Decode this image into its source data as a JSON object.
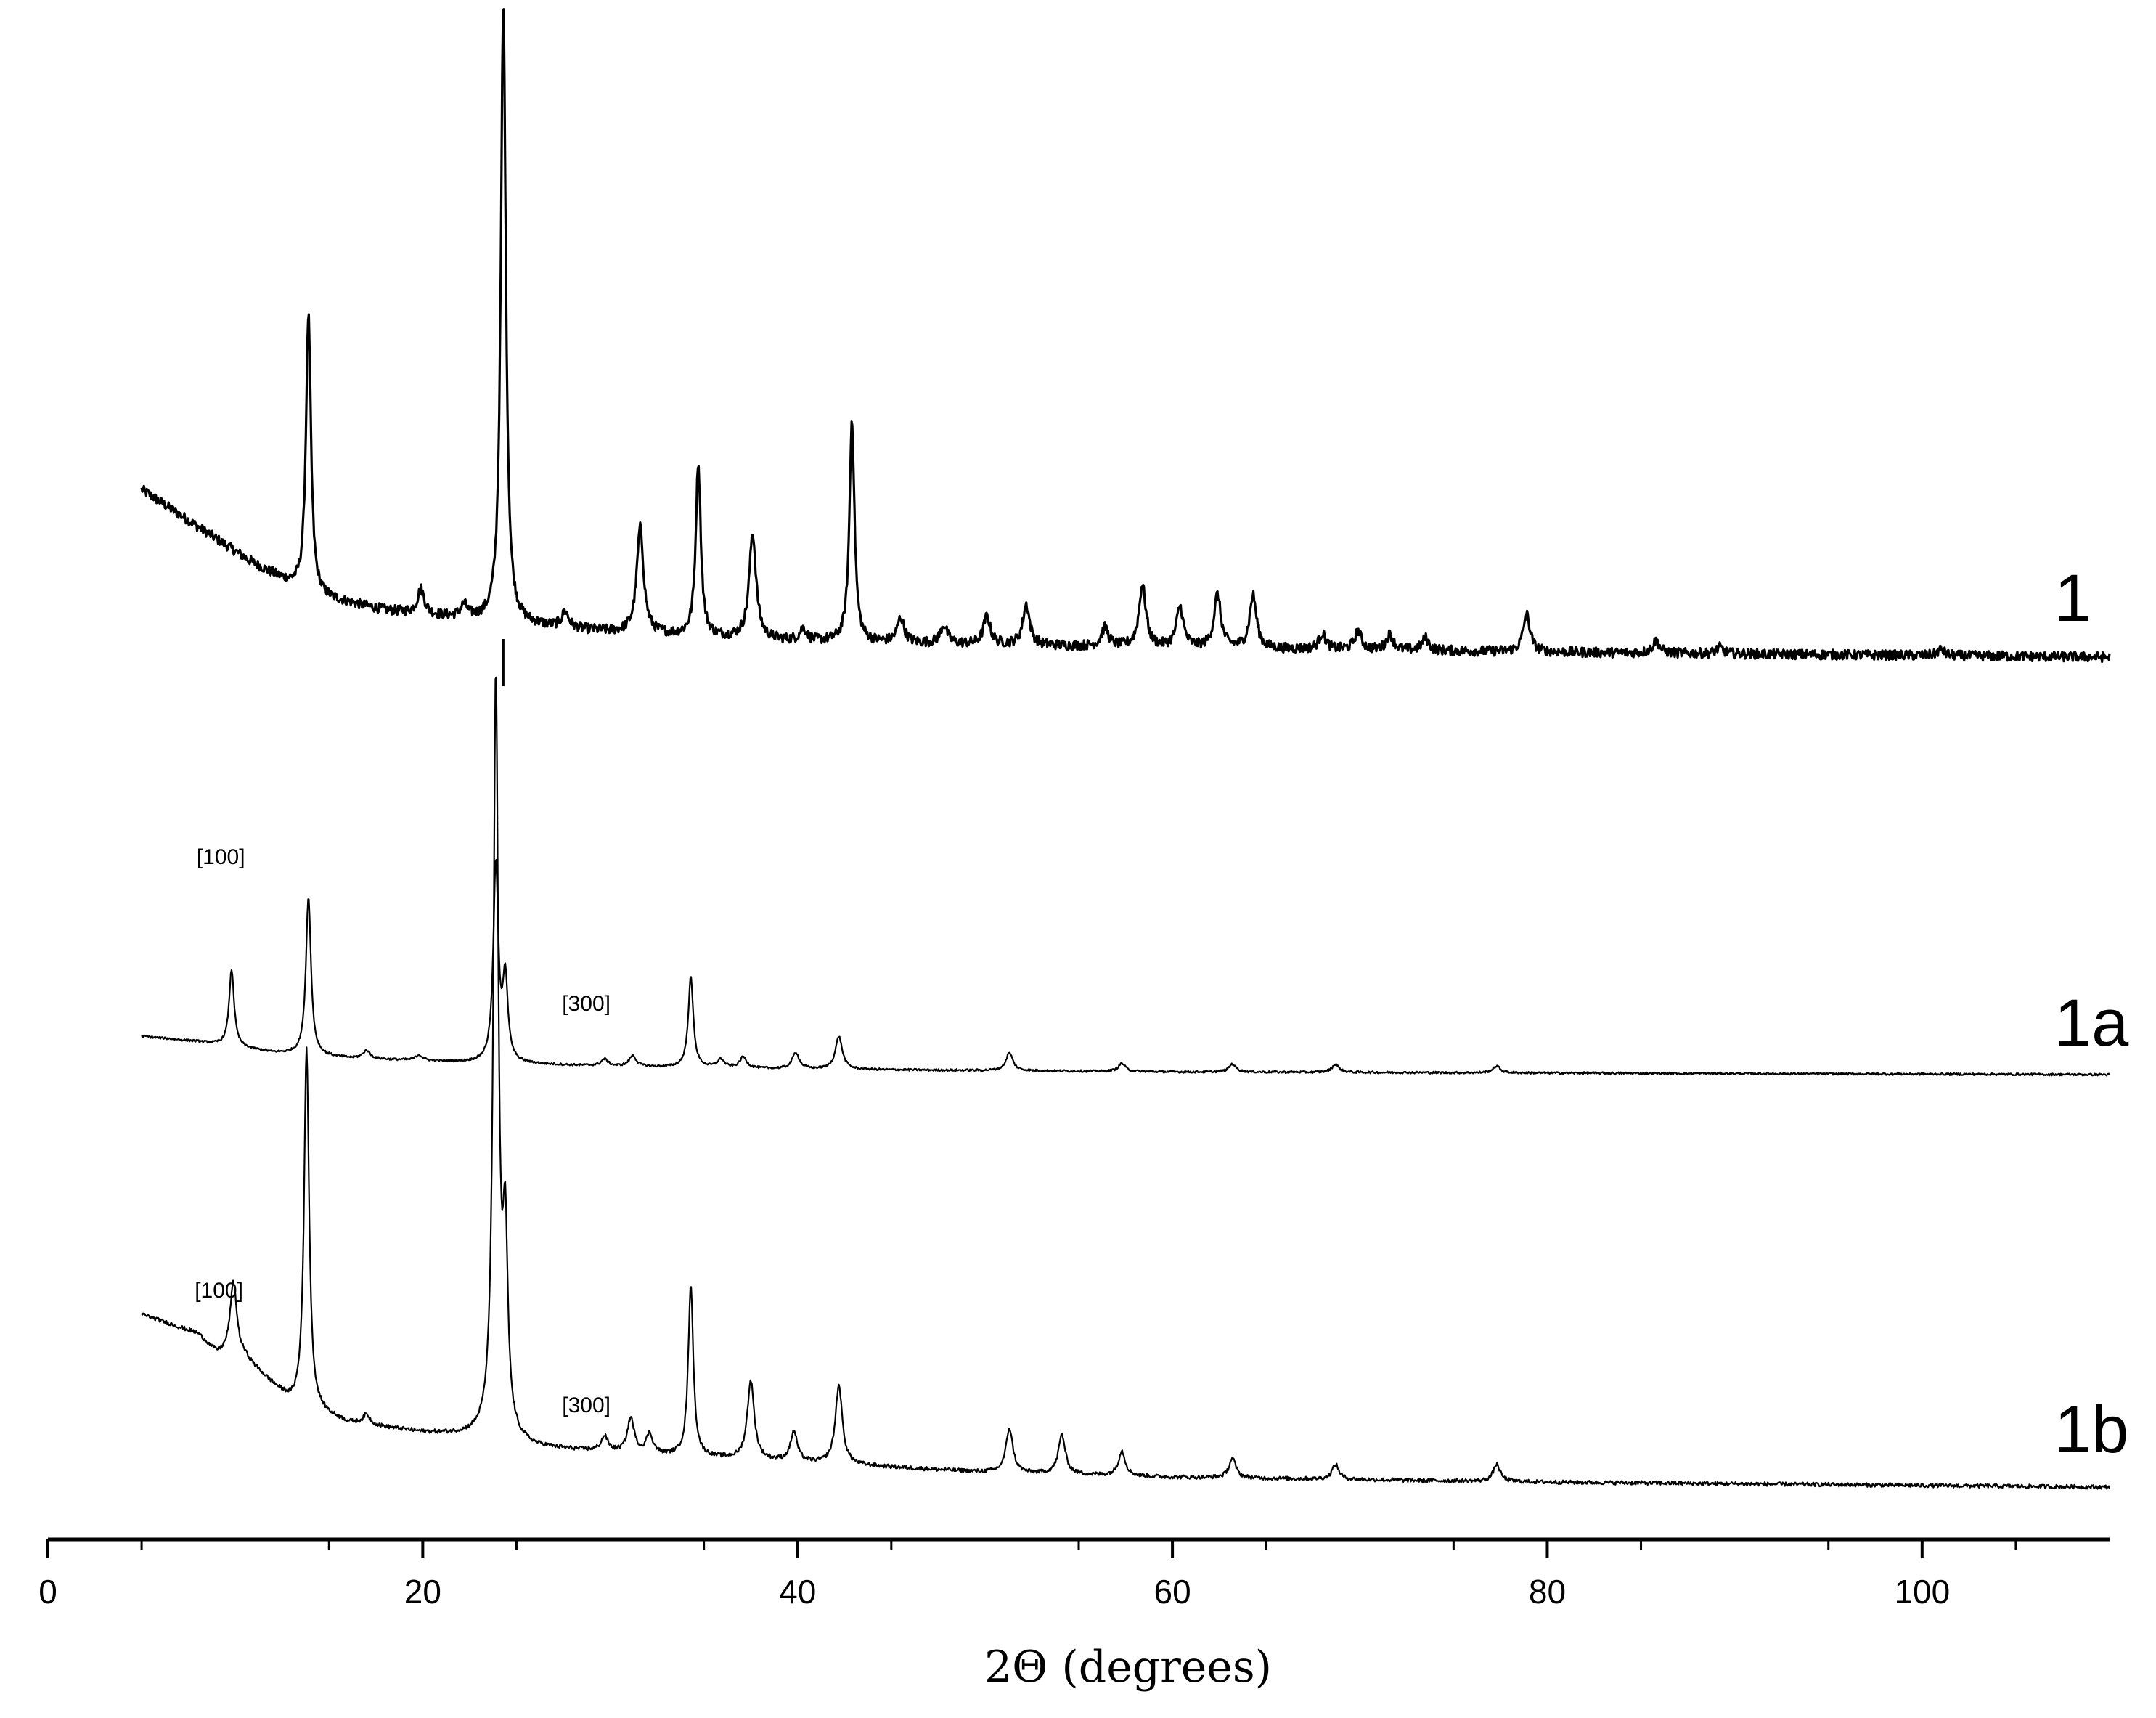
{
  "chart_data": {
    "type": "line",
    "title": "",
    "xlabel": "2Θ (degrees)",
    "ylabel": "",
    "xlim": [
      0,
      110
    ],
    "x_ticks": [
      0,
      20,
      40,
      60,
      80,
      100
    ],
    "x_tick_labels": [
      "0",
      "20",
      "40",
      "60",
      "80",
      "100"
    ],
    "grid": false,
    "legend": "none",
    "y_axis_visible": false,
    "series": [
      {
        "name": "1",
        "background": [
          [
            5,
            0.27
          ],
          [
            8,
            0.21
          ],
          [
            11,
            0.15
          ],
          [
            14,
            0.1
          ],
          [
            18,
            0.075
          ],
          [
            24,
            0.055
          ],
          [
            30,
            0.04
          ],
          [
            40,
            0.025
          ],
          [
            60,
            0.015
          ],
          [
            80,
            0.008
          ],
          [
            110,
            0.0
          ]
        ],
        "peaks": [
          {
            "x": 13.9,
            "h": 0.45
          },
          {
            "x": 19.9,
            "h": 0.04
          },
          {
            "x": 22.2,
            "h": 0.02
          },
          {
            "x": 24.3,
            "h": 1.0
          },
          {
            "x": 27.6,
            "h": 0.025
          },
          {
            "x": 31.6,
            "h": 0.17
          },
          {
            "x": 34.7,
            "h": 0.28
          },
          {
            "x": 37.6,
            "h": 0.17
          },
          {
            "x": 40.3,
            "h": 0.02
          },
          {
            "x": 42.9,
            "h": 0.36
          },
          {
            "x": 45.5,
            "h": 0.04
          },
          {
            "x": 47.8,
            "h": 0.03
          },
          {
            "x": 50.1,
            "h": 0.045
          },
          {
            "x": 52.2,
            "h": 0.065
          },
          {
            "x": 56.4,
            "h": 0.03
          },
          {
            "x": 58.4,
            "h": 0.1
          },
          {
            "x": 60.4,
            "h": 0.065
          },
          {
            "x": 62.4,
            "h": 0.085
          },
          {
            "x": 64.3,
            "h": 0.085
          },
          {
            "x": 68.0,
            "h": 0.025
          },
          {
            "x": 69.9,
            "h": 0.03
          },
          {
            "x": 71.6,
            "h": 0.025
          },
          {
            "x": 73.5,
            "h": 0.02
          },
          {
            "x": 78.9,
            "h": 0.06
          },
          {
            "x": 85.8,
            "h": 0.02
          },
          {
            "x": 89.2,
            "h": 0.01
          },
          {
            "x": 101.0,
            "h": 0.01
          }
        ]
      },
      {
        "name": "1a",
        "background": [
          [
            5,
            0.14
          ],
          [
            8,
            0.12
          ],
          [
            12,
            0.08
          ],
          [
            16,
            0.06
          ],
          [
            22,
            0.045
          ],
          [
            30,
            0.03
          ],
          [
            40,
            0.02
          ],
          [
            60,
            0.01
          ],
          [
            110,
            0.0
          ]
        ],
        "peaks": [
          {
            "x": 9.8,
            "h": 0.28
          },
          {
            "x": 13.9,
            "h": 0.58
          },
          {
            "x": 17.0,
            "h": 0.03
          },
          {
            "x": 19.8,
            "h": 0.02
          },
          {
            "x": 23.9,
            "h": 0.72
          },
          {
            "x": 24.4,
            "h": 0.3
          },
          {
            "x": 29.7,
            "h": 0.025
          },
          {
            "x": 31.2,
            "h": 0.04
          },
          {
            "x": 34.3,
            "h": 0.33
          },
          {
            "x": 35.9,
            "h": 0.03
          },
          {
            "x": 37.1,
            "h": 0.04
          },
          {
            "x": 39.9,
            "h": 0.06
          },
          {
            "x": 42.2,
            "h": 0.12
          },
          {
            "x": 51.3,
            "h": 0.065
          },
          {
            "x": 57.3,
            "h": 0.03
          },
          {
            "x": 63.2,
            "h": 0.03
          },
          {
            "x": 68.7,
            "h": 0.03
          },
          {
            "x": 77.3,
            "h": 0.025
          }
        ]
      },
      {
        "name": "1b",
        "background": [
          [
            5,
            0.35
          ],
          [
            8,
            0.31
          ],
          [
            9,
            0.27
          ],
          [
            10.5,
            0.26
          ],
          [
            13,
            0.17
          ],
          [
            16,
            0.13
          ],
          [
            20,
            0.11
          ],
          [
            23.5,
            0.1
          ],
          [
            26,
            0.08
          ],
          [
            32,
            0.065
          ],
          [
            40,
            0.05
          ],
          [
            50,
            0.03
          ],
          [
            60,
            0.02
          ],
          [
            80,
            0.01
          ],
          [
            110,
            0.0
          ]
        ],
        "peaks": [
          {
            "x": 9.9,
            "h": 0.15
          },
          {
            "x": 13.8,
            "h": 0.73
          },
          {
            "x": 17.0,
            "h": 0.02
          },
          {
            "x": 23.9,
            "h": 1.53
          },
          {
            "x": 24.4,
            "h": 0.38
          },
          {
            "x": 29.7,
            "h": 0.03
          },
          {
            "x": 31.1,
            "h": 0.07
          },
          {
            "x": 32.1,
            "h": 0.04
          },
          {
            "x": 34.3,
            "h": 0.35
          },
          {
            "x": 37.5,
            "h": 0.16
          },
          {
            "x": 39.8,
            "h": 0.06
          },
          {
            "x": 42.2,
            "h": 0.16
          },
          {
            "x": 51.3,
            "h": 0.09
          },
          {
            "x": 54.1,
            "h": 0.08
          },
          {
            "x": 57.3,
            "h": 0.05
          },
          {
            "x": 63.2,
            "h": 0.04
          },
          {
            "x": 68.7,
            "h": 0.03
          },
          {
            "x": 77.3,
            "h": 0.035
          }
        ]
      }
    ],
    "series_labels": [
      "1",
      "1a",
      "1b"
    ],
    "annotations": [
      {
        "text": "[100]",
        "series": "1a",
        "x": 10.0
      },
      {
        "text": "[300]",
        "series": "1a",
        "x": 29.5
      },
      {
        "text": "[100]",
        "series": "1b",
        "x": 9.9
      },
      {
        "text": "[300]",
        "series": "1b",
        "x": 29.5
      }
    ],
    "reference_marks": [
      {
        "x": 24.3,
        "description": "short vertical tick below curve 1"
      }
    ]
  }
}
